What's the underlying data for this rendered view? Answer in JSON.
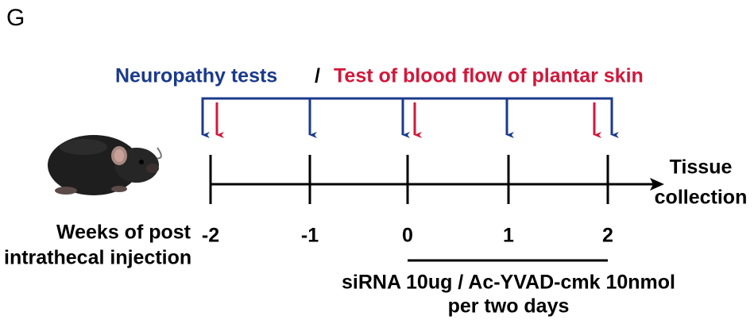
{
  "panel_label": "G",
  "legend": {
    "neuropathy": "Neuropathy tests",
    "separator": "/",
    "blood_flow": "Test of blood flow of plantar skin"
  },
  "timeline": {
    "axis_title": [
      "Weeks of post",
      "intrathecal injection"
    ],
    "ticks": [
      "-2",
      "-1",
      "0",
      "1",
      "2"
    ],
    "end_label": [
      "Tissue",
      "collection"
    ],
    "treatment": [
      "siRNA 10ug / Ac-YVAD-cmk 10nmol",
      "per two days"
    ]
  }
}
